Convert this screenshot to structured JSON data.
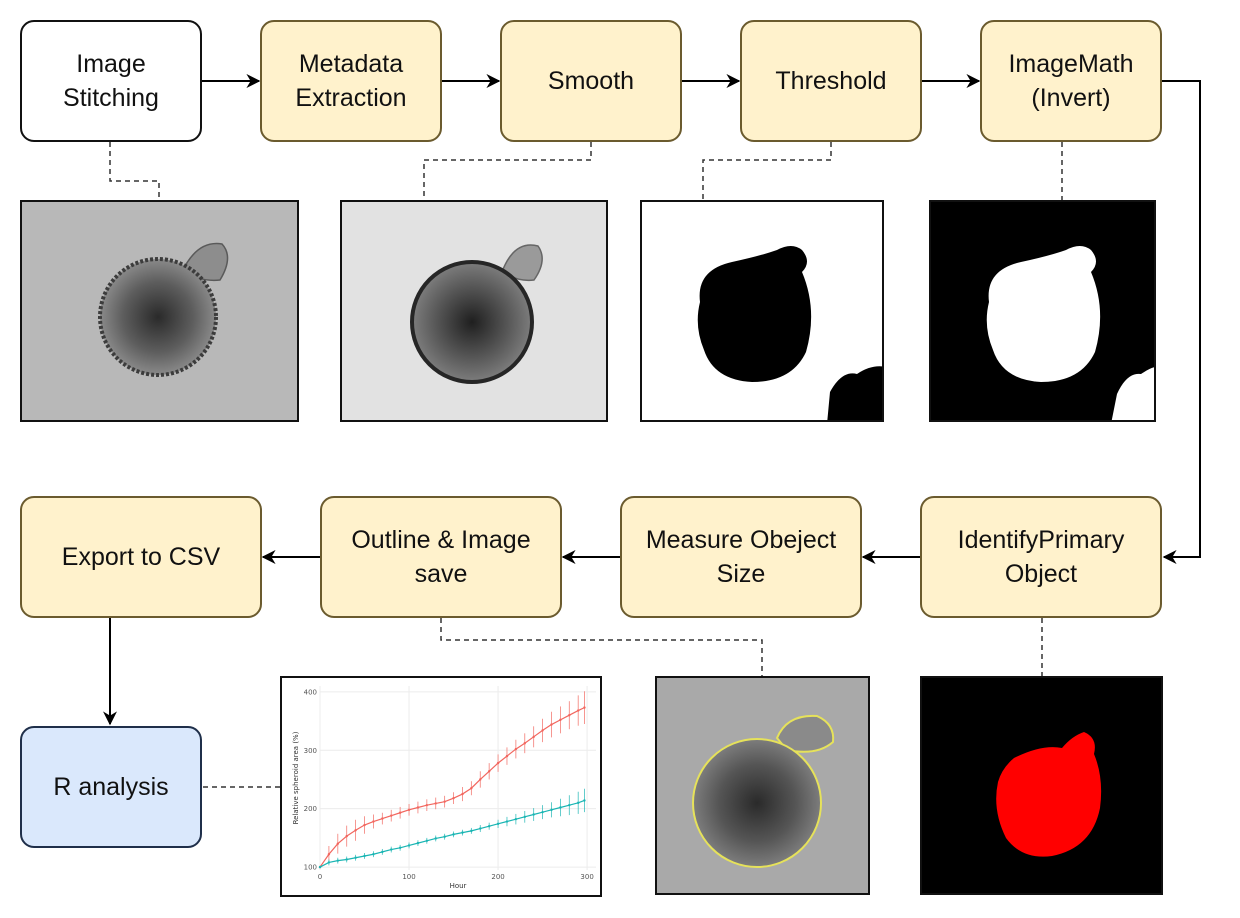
{
  "colors": {
    "process_fill": "#fff2cc",
    "process_border": "#6b5b2e",
    "start_fill": "#ffffff",
    "analysis_fill": "#dae8fc",
    "series_red": "#f2665e",
    "series_teal": "#19b5b3",
    "mask_red": "#ff0000"
  },
  "nodes": {
    "image_stitching": "Image\nStitching",
    "metadata_extraction": "Metadata\nExtraction",
    "smooth": "Smooth",
    "threshold": "Threshold",
    "imagemath": "ImageMath\n(Invert)",
    "identify_primary": "IdentifyPrimary\nObject",
    "measure_size": "Measure Obeject\nSize",
    "outline_save": "Outline & Image\nsave",
    "export_csv": "Export to CSV",
    "r_analysis": "R analysis"
  },
  "chart_data": {
    "type": "line",
    "title": "",
    "xlabel": "Hour",
    "ylabel": "Relative spheroid area (%)",
    "xlim": [
      0,
      310
    ],
    "ylim": [
      95,
      410
    ],
    "xticks": [
      0,
      100,
      200,
      300
    ],
    "yticks": [
      100,
      200,
      300,
      400
    ],
    "grid": true,
    "legend": "none",
    "series": [
      {
        "color": "#f2665e",
        "x": [
          0,
          10,
          20,
          30,
          40,
          50,
          60,
          70,
          80,
          90,
          100,
          110,
          120,
          130,
          140,
          150,
          160,
          170,
          180,
          190,
          200,
          210,
          220,
          230,
          240,
          250,
          260,
          270,
          280,
          290,
          297
        ],
        "y": [
          100,
          122,
          140,
          153,
          163,
          172,
          178,
          183,
          188,
          193,
          198,
          202,
          206,
          209,
          212,
          218,
          225,
          235,
          250,
          264,
          278,
          290,
          302,
          312,
          323,
          334,
          344,
          352,
          360,
          368,
          373
        ],
        "err": [
          2,
          14,
          17,
          18,
          18,
          15,
          12,
          10,
          10,
          10,
          10,
          10,
          10,
          10,
          10,
          10,
          12,
          12,
          14,
          14,
          15,
          15,
          16,
          17,
          18,
          20,
          22,
          23,
          24,
          26,
          28
        ]
      },
      {
        "color": "#19b5b3",
        "x": [
          0,
          10,
          20,
          30,
          40,
          50,
          60,
          70,
          80,
          90,
          100,
          110,
          120,
          130,
          140,
          150,
          160,
          170,
          180,
          190,
          200,
          210,
          220,
          230,
          240,
          250,
          260,
          270,
          280,
          290,
          297
        ],
        "y": [
          100,
          108,
          111,
          113,
          116,
          119,
          122,
          126,
          130,
          133,
          137,
          141,
          145,
          149,
          152,
          156,
          159,
          162,
          166,
          170,
          174,
          178,
          182,
          186,
          190,
          194,
          198,
          202,
          206,
          210,
          214
        ],
        "err": [
          2,
          5,
          5,
          5,
          5,
          5,
          5,
          5,
          5,
          5,
          5,
          5,
          5,
          5,
          5,
          5,
          5,
          5,
          6,
          6,
          7,
          8,
          9,
          10,
          11,
          12,
          13,
          15,
          17,
          19,
          20
        ]
      }
    ]
  }
}
